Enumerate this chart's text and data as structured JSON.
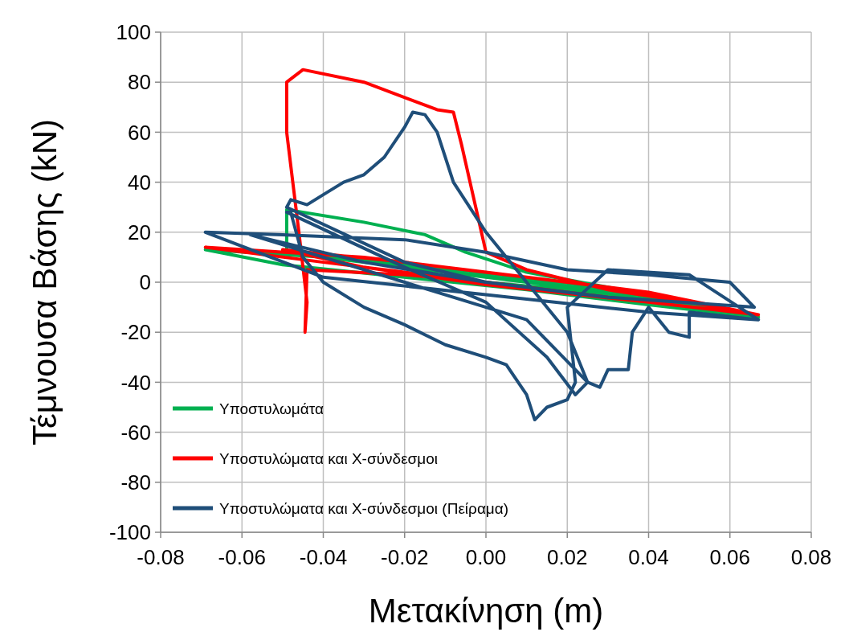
{
  "chart_data": {
    "type": "line",
    "xlabel": "Μετακίνηση (m)",
    "ylabel": "Τέμνουσα Βάσης (kN)",
    "xlim": [
      -0.08,
      0.08
    ],
    "xticks": [
      {
        "value": -0.08,
        "label": "-0.08"
      },
      {
        "value": -0.06,
        "label": "-0.06"
      },
      {
        "value": -0.04,
        "label": "-0.04"
      },
      {
        "value": -0.02,
        "label": "-0.02"
      },
      {
        "value": 0,
        "label": "0.00"
      },
      {
        "value": 0.02,
        "label": "0.02"
      },
      {
        "value": 0.04,
        "label": "0.04"
      },
      {
        "value": 0.06,
        "label": "0.06"
      },
      {
        "value": 0.08,
        "label": "0.08"
      }
    ],
    "ylim": [
      -100,
      100
    ],
    "yticks": [
      -100,
      -80,
      -60,
      -40,
      -20,
      0,
      20,
      40,
      60,
      80,
      100
    ],
    "grid": true,
    "legend": "bottom left",
    "marker": "none",
    "line_style": "solid",
    "series": [
      {
        "name": "Υποστυλωμάτα",
        "color": "#00b050",
        "x": [
          0,
          0.02,
          0.04,
          0.06,
          0.067,
          0.05,
          0.03,
          0,
          -0.02,
          -0.04,
          -0.049,
          -0.049,
          -0.03,
          -0.015,
          -0.005,
          0.01,
          0.03,
          0.05,
          0.067,
          0.04,
          0,
          -0.03,
          -0.069,
          -0.05,
          -0.02,
          0.01,
          0.04,
          0.067
        ],
        "values": [
          0,
          -3,
          -7,
          -12,
          -14,
          -8,
          -4,
          2,
          6,
          10,
          12,
          29,
          24,
          19,
          12,
          4,
          -2,
          -8,
          -14,
          -5,
          3,
          9,
          13,
          7,
          2,
          -3,
          -9,
          -14
        ]
      },
      {
        "name": "Υποστυλώματα και Χ-σύνδεσμοι",
        "color": "#ff0000",
        "x": [
          0,
          -0.02,
          -0.044,
          -0.0445,
          -0.044,
          -0.046,
          -0.049,
          -0.049,
          -0.045,
          -0.03,
          -0.012,
          -0.008,
          -0.006,
          0,
          0.01,
          0.03,
          0.05,
          0.067,
          0.04,
          0,
          -0.03,
          -0.069,
          -0.04,
          0,
          0.03,
          0.067,
          0.03,
          -0.02,
          -0.05,
          -0.03,
          0,
          0.04,
          0.067
        ],
        "values": [
          0,
          3,
          5,
          -20,
          -8,
          20,
          60,
          80,
          85,
          80,
          69,
          68,
          55,
          12,
          5,
          -3,
          -8,
          -13,
          -4,
          4,
          10,
          14,
          8,
          0,
          -6,
          -13,
          -2,
          8,
          13,
          6,
          -1,
          -8,
          -13
        ]
      },
      {
        "name": "Υποστυλώματα και Χ-σύνδεσμοι (Πείραμα)",
        "color": "#1f4e79",
        "x": [
          0,
          -0.02,
          -0.049,
          -0.048,
          -0.044,
          -0.04,
          -0.035,
          -0.03,
          -0.025,
          -0.02,
          -0.018,
          -0.015,
          -0.012,
          -0.008,
          0,
          0.01,
          0.02,
          0.025,
          0.022,
          0.015,
          0,
          -0.02,
          -0.049,
          -0.048,
          -0.045,
          -0.04,
          -0.03,
          -0.02,
          -0.01,
          0,
          0.005,
          0.01,
          0.012,
          0.015,
          0.02,
          0.022,
          0.02,
          0.03,
          0.05,
          0.067,
          0.04,
          0,
          -0.04,
          -0.069,
          -0.05,
          -0.02,
          0,
          0.02,
          0.04,
          0.06,
          0.066,
          0.03,
          0,
          -0.03,
          -0.058,
          -0.04,
          -0.01,
          0.01,
          0.025,
          0.028,
          0.03,
          0.035,
          0.036,
          0.04,
          0.045,
          0.05,
          0.05,
          0.067
        ],
        "values": [
          0,
          8,
          30,
          33,
          31,
          35,
          40,
          43,
          50,
          62,
          68,
          67,
          60,
          40,
          20,
          0,
          -20,
          -40,
          -45,
          -30,
          -8,
          6,
          28,
          28,
          10,
          0,
          -10,
          -17,
          -25,
          -30,
          -33,
          -45,
          -55,
          -50,
          -47,
          -40,
          -10,
          5,
          3,
          -15,
          -12,
          -5,
          2,
          20,
          19,
          17,
          12,
          5,
          3,
          0,
          -10,
          -6,
          0,
          8,
          19,
          10,
          -5,
          -15,
          -40,
          -42,
          -35,
          -35,
          -20,
          -10,
          -20,
          -22,
          -12,
          -15
        ]
      }
    ]
  }
}
